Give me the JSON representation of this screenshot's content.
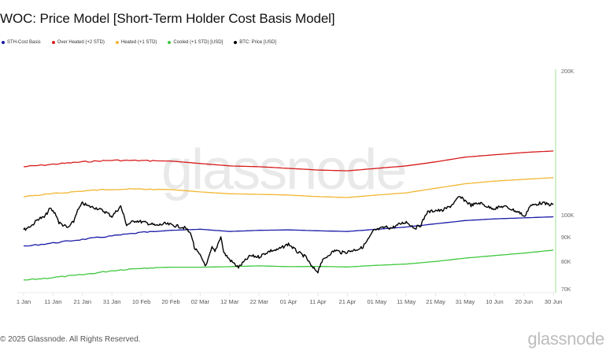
{
  "header": {
    "title": "WOC: Price Model [Short-Term Holder Cost Basis Model]"
  },
  "legend": [
    {
      "label": "STH-Cost Basis",
      "color": "#1a1aa8"
    },
    {
      "label": "Over Heated (+2 STD)",
      "color": "#d81b1b"
    },
    {
      "label": "Heated (+1 STD)",
      "color": "#f2b632"
    },
    {
      "label": "Cooled (+1 STD) [USD]",
      "color": "#3fc83f"
    },
    {
      "label": "BTC: Price [USD]",
      "color": "#000000"
    }
  ],
  "watermark": "glassnode",
  "footer": {
    "copyright": "© 2025 Glassnode. All Rights Reserved.",
    "brand": "glassnode"
  },
  "chart_data": {
    "type": "line",
    "title": "WOC: Price Model [Short-Term Holder Cost Basis Model]",
    "xlabel": "",
    "ylabel": "",
    "yscale": "log",
    "ylim": [
      70000,
      200000
    ],
    "grid": false,
    "legend_position": "top-left",
    "y_axis_side": "right",
    "y_ticks": [
      {
        "label": "200K",
        "value": 200000
      },
      {
        "label": "100K",
        "value": 100000
      },
      {
        "label": "90K",
        "value": 90000
      },
      {
        "label": "80K",
        "value": 80000
      },
      {
        "label": "70K",
        "value": 70000
      }
    ],
    "x_ticks": [
      {
        "label": "1 Jan",
        "day": 0
      },
      {
        "label": "11 Jan",
        "day": 10
      },
      {
        "label": "21 Jan",
        "day": 20
      },
      {
        "label": "31 Jan",
        "day": 30
      },
      {
        "label": "10 Feb",
        "day": 40
      },
      {
        "label": "20 Feb",
        "day": 50
      },
      {
        "label": "02 Mar",
        "day": 60
      },
      {
        "label": "12 Mar",
        "day": 70
      },
      {
        "label": "22 Mar",
        "day": 80
      },
      {
        "label": "01 Apr",
        "day": 90
      },
      {
        "label": "11 Apr",
        "day": 100
      },
      {
        "label": "21 Apr",
        "day": 110
      },
      {
        "label": "01 May",
        "day": 120
      },
      {
        "label": "11 May",
        "day": 130
      },
      {
        "label": "21 May",
        "day": 140
      },
      {
        "label": "31 May",
        "day": 150
      },
      {
        "label": "10 Jun",
        "day": 160
      },
      {
        "label": "20 Jun",
        "day": 170
      },
      {
        "label": "30 Jun",
        "day": 180
      }
    ],
    "x_days": [
      0,
      10,
      20,
      30,
      40,
      50,
      60,
      70,
      80,
      90,
      100,
      110,
      120,
      130,
      140,
      150,
      160,
      170,
      180
    ],
    "series": [
      {
        "name": "Over Heated (+2 STD)",
        "color": "#d81b1b",
        "values": [
          127000,
          128500,
          130000,
          131000,
          130800,
          130500,
          129000,
          127500,
          127000,
          126000,
          125000,
          124500,
          126000,
          127500,
          130000,
          133000,
          134500,
          136000,
          137000
        ]
      },
      {
        "name": "Heated (+1 STD)",
        "color": "#f2b632",
        "values": [
          110000,
          111500,
          113000,
          114000,
          114000,
          113800,
          112500,
          111500,
          111200,
          110800,
          110000,
          109500,
          110800,
          112000,
          114500,
          117000,
          118500,
          119500,
          120500
        ]
      },
      {
        "name": "STH-Cost Basis",
        "color": "#1a1aa8",
        "values": [
          86500,
          88000,
          89500,
          91000,
          92500,
          93500,
          94000,
          93000,
          93500,
          93700,
          93300,
          93000,
          94000,
          95000,
          96500,
          98000,
          98800,
          99300,
          99800
        ]
      },
      {
        "name": "Cooled (+1 STD) [USD]",
        "color": "#3fc83f",
        "values": [
          73500,
          74500,
          75500,
          77000,
          78000,
          78300,
          78300,
          78500,
          78800,
          78500,
          78600,
          78400,
          79000,
          79500,
          80500,
          81800,
          82800,
          83800,
          85000
        ]
      },
      {
        "name": "BTC: Price [USD]",
        "color": "#000000",
        "days": [
          0,
          3,
          5,
          7,
          9,
          11,
          12,
          14,
          15,
          17,
          18,
          20,
          22,
          25,
          28,
          30,
          33,
          35,
          38,
          40,
          43,
          45,
          48,
          50,
          53,
          55,
          57,
          58,
          60,
          62,
          64,
          65,
          67,
          68,
          70,
          73,
          75,
          77,
          80,
          82,
          84,
          86,
          88,
          90,
          93,
          96,
          98,
          100,
          101,
          102,
          104,
          106,
          108,
          110,
          113,
          115,
          117,
          119,
          120,
          123,
          125,
          128,
          130,
          133,
          135,
          137,
          140,
          142,
          145,
          147,
          148,
          150,
          152,
          155,
          158,
          160,
          163,
          165,
          167,
          169,
          170,
          172,
          174,
          176,
          178,
          180
        ],
        "values": [
          93700,
          96000,
          98900,
          99500,
          103900,
          101000,
          97000,
          95500,
          94500,
          97500,
          101900,
          106600,
          105000,
          104000,
          102000,
          100000,
          105000,
          96000,
          98000,
          97400,
          96500,
          95600,
          96500,
          96000,
          95200,
          94500,
          91600,
          86000,
          82700,
          78700,
          86000,
          84300,
          90900,
          84000,
          81200,
          78200,
          80500,
          82700,
          82300,
          83700,
          84800,
          85000,
          86200,
          87600,
          84300,
          82100,
          78200,
          76700,
          80000,
          81200,
          83500,
          85000,
          84000,
          84300,
          85300,
          86000,
          89300,
          93500,
          93700,
          95000,
          94500,
          96500,
          97400,
          94500,
          96000,
          101900,
          103000,
          102700,
          105000,
          108000,
          109900,
          107900,
          105500,
          106700,
          104500,
          103900,
          105000,
          104000,
          102700,
          101500,
          99600,
          105000,
          106000,
          106700,
          106000,
          105800
        ]
      }
    ]
  }
}
